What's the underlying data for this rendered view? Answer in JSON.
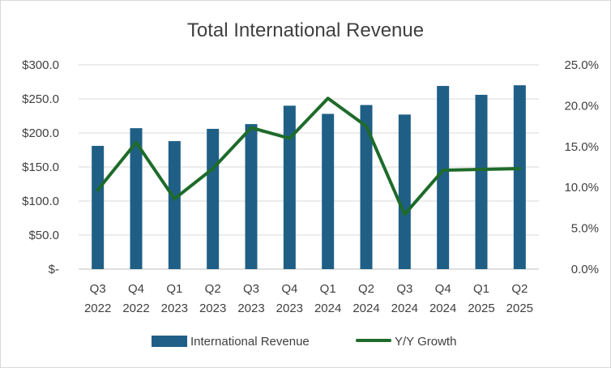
{
  "chart_data": {
    "type": "bar",
    "title": "Total International Revenue",
    "categories": [
      [
        "Q3",
        "2022"
      ],
      [
        "Q4",
        "2022"
      ],
      [
        "Q1",
        "2023"
      ],
      [
        "Q2",
        "2023"
      ],
      [
        "Q3",
        "2023"
      ],
      [
        "Q4",
        "2023"
      ],
      [
        "Q1",
        "2024"
      ],
      [
        "Q2",
        "2024"
      ],
      [
        "Q3",
        "2024"
      ],
      [
        "Q4",
        "2024"
      ],
      [
        "Q1",
        "2025"
      ],
      [
        "Q2",
        "2025"
      ]
    ],
    "series": [
      {
        "name": "International Revenue",
        "type": "bar",
        "axis": "left",
        "color": "#1f5f86",
        "values": [
          181,
          207,
          188,
          206,
          213,
          240,
          228,
          241,
          227,
          269,
          256,
          270
        ]
      },
      {
        "name": "Y/Y Growth",
        "type": "line",
        "axis": "right",
        "color": "#1e6b2a",
        "values": [
          9.7,
          15.5,
          8.6,
          12.3,
          17.3,
          16.0,
          20.9,
          17.5,
          6.7,
          12.1,
          12.2,
          12.3
        ]
      }
    ],
    "y_left": {
      "min": 0,
      "max": 300,
      "step": 50,
      "tick_labels": [
        "$-",
        "$50.0",
        "$100.0",
        "$150.0",
        "$200.0",
        "$250.0",
        "$300.0"
      ]
    },
    "y_right": {
      "min": 0,
      "max": 25,
      "step": 5,
      "tick_labels": [
        "0.0%",
        "5.0%",
        "10.0%",
        "15.0%",
        "20.0%",
        "25.0%"
      ]
    },
    "grid": "horizontal",
    "legend_position": "bottom",
    "xlabel": "",
    "ylabel": ""
  }
}
